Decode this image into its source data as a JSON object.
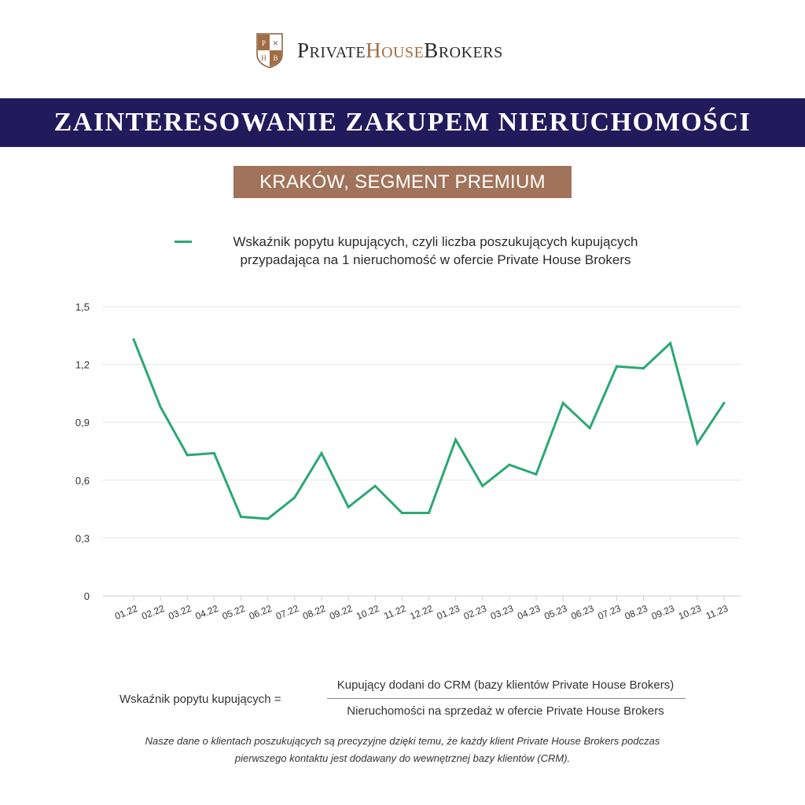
{
  "brand": {
    "shield_letters": [
      "P",
      "H",
      "B"
    ],
    "name_part1": "PRIVATE",
    "name_part2": "HOUSE",
    "name_part3": "BROKERS",
    "accent_color": "#a06d45"
  },
  "header": {
    "title": "ZAINTERESOWANIE ZAKUPEM NIERUCHOMOŚCI",
    "subtitle": "KRAKÓW, SEGMENT PREMIUM",
    "band_color": "#221a5b",
    "subtitle_color": "#a0735a"
  },
  "chart_data": {
    "type": "line",
    "title": "",
    "xlabel": "",
    "ylabel": "",
    "ylim": [
      0,
      1.5
    ],
    "yticks": [
      "0",
      "0,3",
      "0,6",
      "0,9",
      "1,2",
      "1,5"
    ],
    "grid": true,
    "legend_position": "top",
    "categories": [
      "01.22",
      "02.22",
      "03.22",
      "04.22",
      "05.22",
      "06.22",
      "07.22",
      "08.22",
      "09.22",
      "10.22",
      "11.22",
      "12.22",
      "01.23",
      "02.23",
      "03.23",
      "04.23",
      "05.23",
      "06.23",
      "07.23",
      "08.23",
      "09.23",
      "10.23",
      "11.23"
    ],
    "series": [
      {
        "name": "Wskaźnik popytu kupujących, czyli liczba poszukujących kupujących przypadająca na 1 nieruchomość w ofercie Private House Brokers",
        "name_lines": [
          "Wskaźnik popytu kupujących, czyli liczba poszukujących kupujących",
          "przypadająca na 1 nieruchomość w ofercie Private House Brokers"
        ],
        "color": "#2aa874",
        "values": [
          1.33,
          0.98,
          0.73,
          0.74,
          0.41,
          0.4,
          0.51,
          0.74,
          0.46,
          0.57,
          0.43,
          0.43,
          0.81,
          0.57,
          0.68,
          0.63,
          1.0,
          0.87,
          1.19,
          1.18,
          1.31,
          0.79,
          1.0
        ]
      }
    ]
  },
  "formula": {
    "lhs": "Wskaźnik popytu kupujących =",
    "numerator": "Kupujący dodani do CRM (bazy klientów Private House Brokers)",
    "denominator": "Nieruchomości na sprzedaż w ofercie Private House Brokers"
  },
  "footnote": {
    "line1": "Nasze dane o klientach poszukujących są precyzyjne dzięki temu, że każdy klient Private House Brokers podczas",
    "line2": "pierwszego kontaktu jest dodawany do wewnętrznej bazy klientów (CRM)."
  }
}
